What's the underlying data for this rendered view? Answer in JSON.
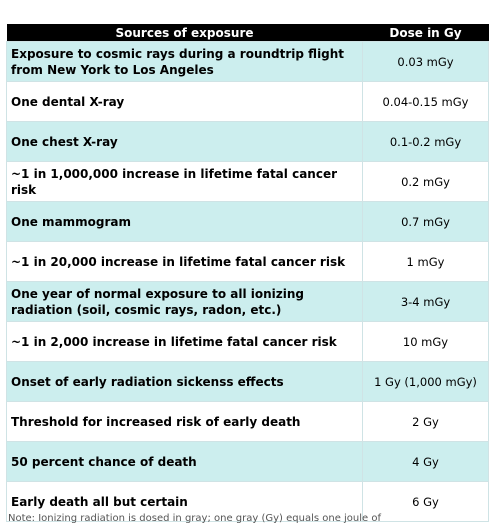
{
  "table": {
    "headers": {
      "source": "Sources of exposure",
      "dose": "Dose in Gy"
    },
    "rows": [
      {
        "source": "Exposure to cosmic rays during a roundtrip flight from New York to Los Angeles",
        "dose": "0.03 mGy"
      },
      {
        "source": "One dental X-ray",
        "dose": "0.04-0.15 mGy"
      },
      {
        "source": "One chest X-ray",
        "dose": "0.1-0.2 mGy"
      },
      {
        "source": "~1 in 1,000,000 increase in lifetime fatal cancer risk",
        "dose": "0.2 mGy"
      },
      {
        "source": "One mammogram",
        "dose": "0.7 mGy"
      },
      {
        "source": "~1 in 20,000 increase in lifetime fatal cancer risk",
        "dose": "1 mGy"
      },
      {
        "source": "One year of normal exposure to all ionizing radiation (soil, cosmic rays, radon, etc.)",
        "dose": "3-4 mGy"
      },
      {
        "source": "~1 in 2,000 increase in lifetime fatal cancer risk",
        "dose": "10 mGy"
      },
      {
        "source": "Onset of early radiation sickenss effects",
        "dose": "1 Gy (1,000 mGy)"
      },
      {
        "source": "Threshold for increased risk of early death",
        "dose": "2 Gy"
      },
      {
        "source": "50 percent chance of death",
        "dose": "4 Gy"
      },
      {
        "source": "Early death all but certain",
        "dose": "6 Gy"
      }
    ]
  },
  "colors": {
    "header_bg": "#000000",
    "header_text": "#ffffff",
    "shaded_row": "#cceeee",
    "plain_row": "#ffffff"
  },
  "footer": {
    "text": "Note: Ionizing radiation is dosed in gray; one gray (Gy) equals one joule of"
  }
}
